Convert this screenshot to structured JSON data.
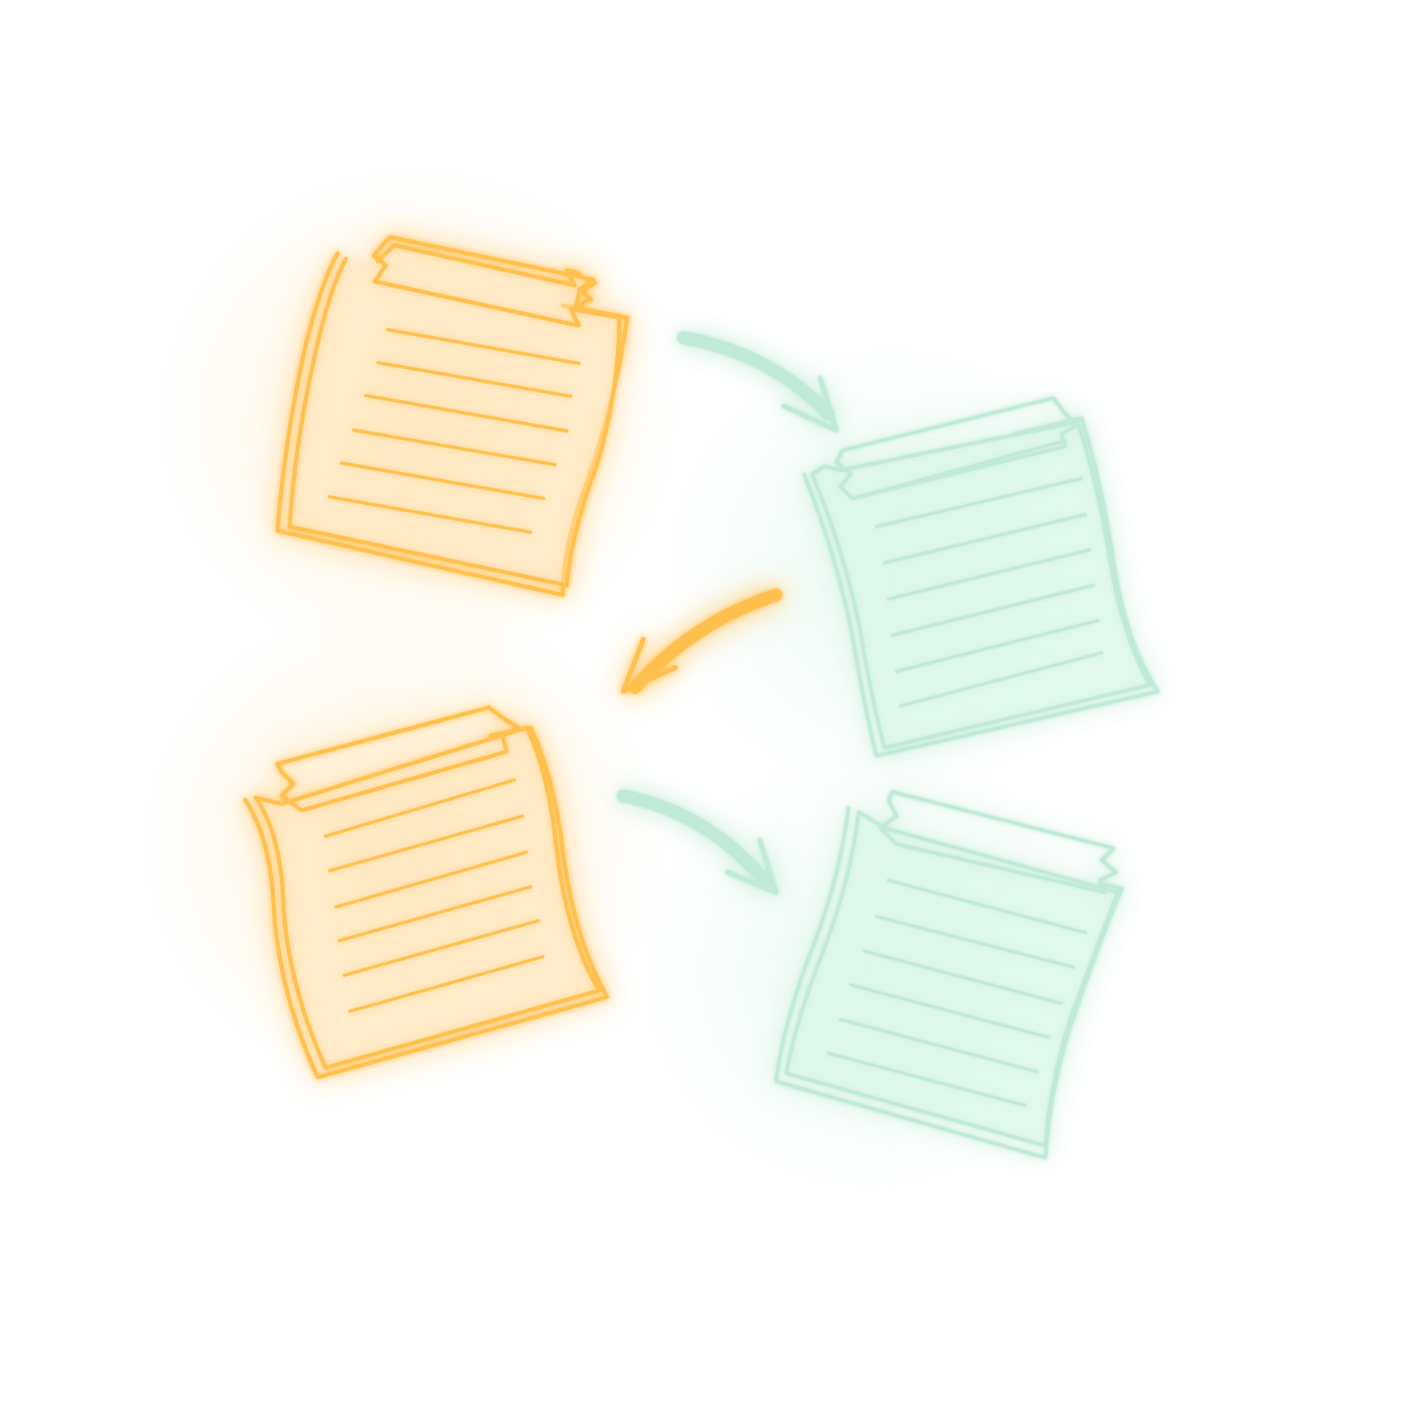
{
  "illustration": {
    "subject": "sticky-notes-flow",
    "colors": {
      "orange": "#FFC04D",
      "mint": "#BFEAD6",
      "background": "#FFFFFF"
    },
    "icons": [
      "note-orange-top-left-icon",
      "note-mint-right-icon",
      "note-orange-bottom-left-icon",
      "note-mint-bottom-right-icon",
      "arrow-mint-top-icon",
      "arrow-orange-middle-icon",
      "arrow-mint-bottom-icon"
    ]
  }
}
